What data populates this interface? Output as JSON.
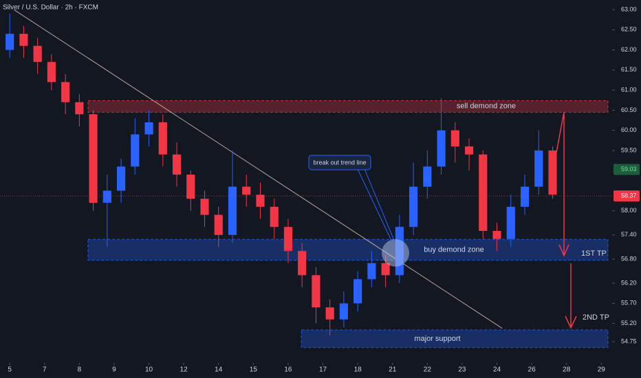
{
  "chart_data": {
    "type": "candlestick",
    "title": "Silver / U.S. Dollar · 2h · FXCM",
    "x": [
      0,
      0.4,
      0.8,
      1.2,
      1.6,
      2.0,
      2.4,
      2.8,
      3.2,
      3.6,
      4.0,
      4.4,
      4.8,
      5.2,
      5.6,
      6.0,
      6.4,
      6.8,
      7.2,
      7.6,
      8.0,
      8.4,
      8.8,
      9.2,
      9.6,
      10.0,
      10.4,
      10.8,
      11.2,
      11.6,
      12.0,
      12.4,
      12.8,
      13.2,
      13.6,
      14.0,
      14.4,
      14.8,
      15.2,
      15.6
    ],
    "open": [
      62.0,
      62.4,
      62.1,
      61.7,
      61.2,
      60.7,
      60.4,
      58.2,
      58.5,
      59.1,
      59.9,
      60.2,
      59.4,
      58.9,
      58.3,
      57.9,
      57.4,
      58.6,
      58.4,
      58.1,
      57.6,
      57.0,
      56.4,
      55.6,
      55.3,
      55.7,
      56.3,
      56.7,
      56.4,
      57.6,
      58.6,
      59.1,
      60.0,
      59.6,
      59.4,
      57.5,
      57.3,
      58.1,
      58.6,
      59.5
    ],
    "high": [
      62.9,
      62.6,
      62.3,
      61.9,
      61.4,
      60.9,
      60.5,
      58.9,
      59.3,
      60.3,
      60.5,
      60.4,
      59.7,
      59.0,
      58.5,
      58.1,
      59.5,
      58.9,
      58.7,
      58.3,
      57.8,
      57.2,
      56.6,
      55.8,
      56.0,
      56.5,
      57.0,
      56.9,
      57.9,
      59.2,
      59.5,
      60.8,
      60.2,
      59.8,
      59.5,
      57.7,
      58.4,
      58.9,
      60.0,
      59.6
    ],
    "low": [
      61.8,
      61.8,
      61.4,
      61.0,
      60.4,
      60.1,
      58.0,
      57.1,
      58.2,
      58.9,
      59.6,
      59.1,
      58.6,
      58.0,
      57.6,
      57.1,
      57.2,
      58.1,
      57.8,
      57.3,
      56.7,
      56.1,
      55.2,
      54.9,
      55.1,
      55.5,
      56.1,
      56.1,
      56.2,
      57.4,
      58.3,
      58.9,
      59.2,
      59.0,
      57.3,
      57.0,
      57.1,
      57.9,
      58.4,
      58.3
    ],
    "close": [
      62.4,
      62.1,
      61.7,
      61.2,
      60.7,
      60.4,
      58.2,
      58.5,
      59.1,
      59.9,
      60.2,
      59.4,
      58.9,
      58.3,
      57.9,
      57.4,
      58.6,
      58.4,
      58.1,
      57.6,
      57.0,
      56.4,
      55.6,
      55.3,
      55.7,
      56.3,
      56.7,
      56.4,
      57.6,
      58.6,
      59.1,
      60.0,
      59.6,
      59.4,
      57.5,
      57.3,
      58.1,
      58.6,
      59.5,
      58.4
    ],
    "up_color": "#2962ff",
    "down_color": "#f23645",
    "xlim": [
      -0.28,
      17.31
    ],
    "xticks": [
      {
        "value": 0,
        "label": "5"
      },
      {
        "value": 1,
        "label": "7"
      },
      {
        "value": 2,
        "label": "8"
      },
      {
        "value": 3,
        "label": "9"
      },
      {
        "value": 4,
        "label": "10"
      },
      {
        "value": 5,
        "label": "12"
      },
      {
        "value": 6,
        "label": "14"
      },
      {
        "value": 7,
        "label": "15"
      },
      {
        "value": 8,
        "label": "16"
      },
      {
        "value": 9,
        "label": "17"
      },
      {
        "value": 10,
        "label": "18"
      },
      {
        "value": 11,
        "label": "21"
      },
      {
        "value": 12,
        "label": "22"
      },
      {
        "value": 13,
        "label": "23"
      },
      {
        "value": 14,
        "label": "24"
      },
      {
        "value": 15,
        "label": "26"
      },
      {
        "value": 16,
        "label": "28"
      },
      {
        "value": 17,
        "label": "29"
      }
    ],
    "ylim": [
      54.22,
      63.24
    ],
    "yticks": [
      {
        "value": 63,
        "label": "63.00"
      },
      {
        "value": 62.5,
        "label": "62.50"
      },
      {
        "value": 62,
        "label": "62.00"
      },
      {
        "value": 61.5,
        "label": "61.50"
      },
      {
        "value": 61,
        "label": "61.00"
      },
      {
        "value": 60.5,
        "label": "60.50"
      },
      {
        "value": 60,
        "label": "60.00"
      },
      {
        "value": 59.5,
        "label": "59.50"
      },
      {
        "value": 58,
        "label": "58.00"
      },
      {
        "value": 57.4,
        "label": "57.40"
      },
      {
        "value": 56.8,
        "label": "56.80"
      },
      {
        "value": 56.2,
        "label": "56.20"
      },
      {
        "value": 55.7,
        "label": "55.70"
      },
      {
        "value": 55.2,
        "label": "55.20"
      },
      54.75
    ],
    "price_tags": [
      {
        "value": 59.03,
        "color": "#1b5e3b",
        "text_color": "#7ee0a4"
      },
      {
        "value": 58.37,
        "color": "#f23645",
        "text_color": "#ffffff"
      }
    ],
    "zones": [
      {
        "label": "sell demond zone",
        "ylim": [
          60.45,
          60.74
        ],
        "xlim": [
          2.25,
          17.19
        ],
        "color": "#f23645"
      },
      {
        "label": "buy demond zone",
        "ylim": [
          56.77,
          57.29
        ],
        "xlim": [
          2.25,
          17.19
        ],
        "color": "#2962ff"
      },
      {
        "label": "major support",
        "ylim": [
          54.6,
          55.04
        ],
        "xlim": [
          8.38,
          17.19
        ],
        "color": "#2962ff"
      }
    ],
    "trend_line": {
      "x": [
        0.12,
        14.15
      ],
      "y": [
        63.0,
        55.08
      ]
    },
    "callout": "break out trend line",
    "targets": [
      "1ST TP",
      "2ND TP"
    ]
  }
}
